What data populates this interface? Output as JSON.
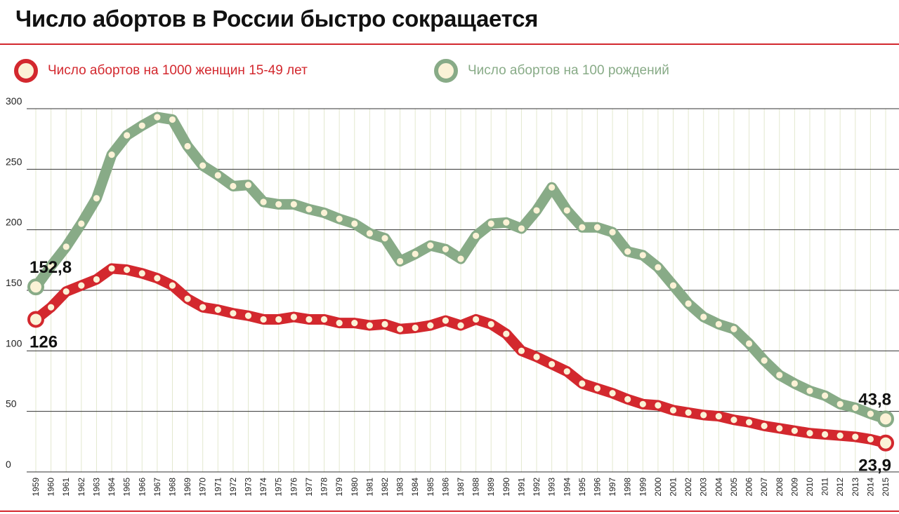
{
  "title": "Число абортов в России быстро сокращается",
  "colors": {
    "red": "#d3282e",
    "green": "#88ab87",
    "dot": "#fbf2d6",
    "grid": "#333333",
    "vgrid": "#e3e8cf"
  },
  "legend": [
    {
      "label": "Число абортов на 1000 женщин 15-49 лет",
      "color": "#d3282e"
    },
    {
      "label": "Число абортов на 100 рождений",
      "color": "#88ab87"
    }
  ],
  "chart_data": {
    "type": "line",
    "title": "Число абортов в России быстро сокращается",
    "xlabel": "",
    "ylabel": "",
    "ylim": [
      0,
      300
    ],
    "yticks": [
      0,
      50,
      100,
      150,
      200,
      250,
      300
    ],
    "grid": true,
    "legend_position": "top-left",
    "x": [
      "1959",
      "1960",
      "1961",
      "1962",
      "1963",
      "1964",
      "1965",
      "1966",
      "1967",
      "1968",
      "1969",
      "1970",
      "1971",
      "1972",
      "1973",
      "1974",
      "1975",
      "1976",
      "1977",
      "1978",
      "1979",
      "1980",
      "1981",
      "1982",
      "1983",
      "1984",
      "1985",
      "1986",
      "1987",
      "1988",
      "1989",
      "1990",
      "1991",
      "1992",
      "1993",
      "1994",
      "1995",
      "1996",
      "1997",
      "1998",
      "1999",
      "2000",
      "2001",
      "2002",
      "2003",
      "2004",
      "2005",
      "2006",
      "2007",
      "2008",
      "2009",
      "2010",
      "2011",
      "2012",
      "2013",
      "2014",
      "2015"
    ],
    "series": [
      {
        "name": "Число абортов на 1000 женщин 15-49 лет",
        "color": "#d3282e",
        "values": [
          126,
          136,
          149,
          154,
          159,
          168,
          167,
          164,
          160,
          154,
          143,
          136,
          134,
          131,
          129,
          126,
          126,
          128,
          126,
          126,
          123,
          123,
          121,
          122,
          118,
          119,
          121,
          125,
          121,
          126,
          122,
          114,
          100,
          95,
          89,
          83,
          73,
          69,
          65,
          60,
          56,
          55,
          51,
          49,
          47,
          46,
          43,
          41,
          38,
          36,
          34,
          32,
          31,
          30,
          29,
          27,
          23.9
        ]
      },
      {
        "name": "Число абортов на 100 рождений",
        "color": "#88ab87",
        "values": [
          152.8,
          170,
          186,
          205,
          226,
          262,
          278,
          286,
          293,
          291,
          269,
          253,
          245,
          236,
          237,
          223,
          221,
          221,
          217,
          214,
          209,
          205,
          197,
          193,
          174,
          180,
          187,
          184,
          176,
          195,
          205,
          206,
          201,
          216,
          235,
          216,
          202,
          202,
          198,
          182,
          179,
          169,
          154,
          139,
          128,
          122,
          118,
          106,
          92,
          80,
          73,
          67,
          63,
          56,
          53,
          48,
          43.8
        ]
      }
    ],
    "annotations": [
      {
        "text": "152,8",
        "series": 1,
        "index": 0,
        "pos": "above"
      },
      {
        "text": "126",
        "series": 0,
        "index": 0,
        "pos": "below"
      },
      {
        "text": "43,8",
        "series": 1,
        "index": 56,
        "pos": "above"
      },
      {
        "text": "23,9",
        "series": 0,
        "index": 56,
        "pos": "below"
      }
    ]
  }
}
